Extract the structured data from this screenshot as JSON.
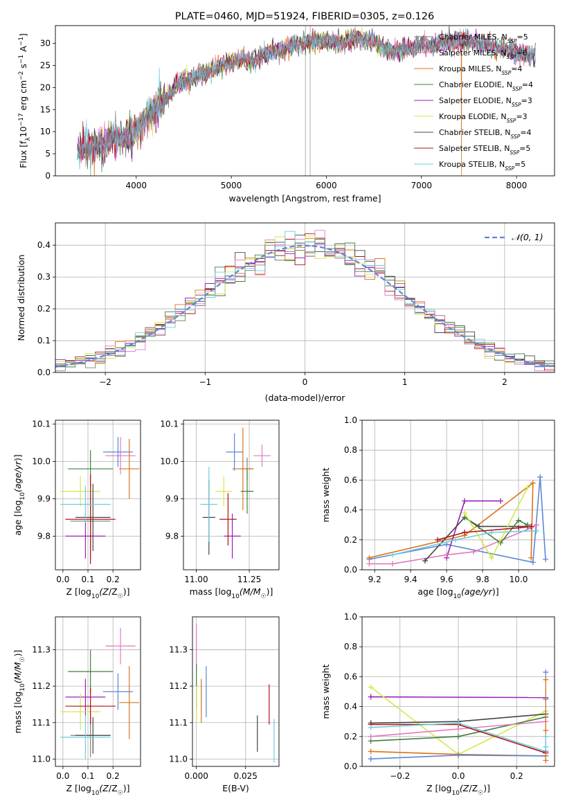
{
  "title": "PLATE=0460, MJD=51924, FIBERID=0305, z=0.126",
  "colors": [
    "#7f7f7f",
    "#e377c2",
    "#d9731a",
    "#3f7f3f",
    "#9a1fb5",
    "#d4e84a",
    "#444444",
    "#b01010",
    "#6ecbdf",
    "#5b86d6"
  ],
  "models": [
    "Chabrier MILES, N_SSP=5",
    "Salpeter MILES, N_SSP=6",
    "Kroupa MILES, N_SSP=4",
    "Chabrier ELODIE, N_SSP=4",
    "Salpeter ELODIE, N_SSP=3",
    "Kroupa ELODIE, N_SSP=3",
    "Chabrier STELIB, N_SSP=4",
    "Salpeter STELIB, N_SSP=5",
    "Kroupa STELIB, N_SSP=5"
  ],
  "chart_data": [
    {
      "id": "spectrum",
      "type": "line",
      "title": "PLATE=0460, MJD=51924, FIBERID=0305, z=0.126",
      "xlabel": "wavelength [Angstrom, rest frame]",
      "ylabel": "Flux [f_λ 10^-17 erg cm^-2 s^-1 A^-1]",
      "xlim": [
        3150,
        8400
      ],
      "ylim": [
        0,
        34
      ],
      "xticks": [
        4000,
        5000,
        6000,
        7000,
        8000
      ],
      "yticks": [
        0,
        5,
        10,
        15,
        20,
        25,
        30
      ],
      "grid": false,
      "legend": "top-right",
      "legend_entries": [
        {
          "name": "Chabrier MILES, N",
          "sub": "SSP",
          "tail": "=5"
        },
        {
          "name": "Salpeter MILES, N",
          "sub": "SSP",
          "tail": "=6"
        },
        {
          "name": "Kroupa MILES, N",
          "sub": "SSP",
          "tail": "=4"
        },
        {
          "name": "Chabrier ELODIE, N",
          "sub": "SSP",
          "tail": "=4"
        },
        {
          "name": "Salpeter ELODIE, N",
          "sub": "SSP",
          "tail": "=3"
        },
        {
          "name": "Kroupa ELODIE, N",
          "sub": "SSP",
          "tail": "=3"
        },
        {
          "name": "Chabrier STELIB, N",
          "sub": "SSP",
          "tail": "=4"
        },
        {
          "name": "Salpeter STELIB, N",
          "sub": "SSP",
          "tail": "=5"
        },
        {
          "name": "Kroupa STELIB, N",
          "sub": "SSP",
          "tail": "=5"
        }
      ],
      "continuum": [
        [
          3400,
          6
        ],
        [
          3500,
          6.5
        ],
        [
          3600,
          7
        ],
        [
          3700,
          8
        ],
        [
          3800,
          8.5
        ],
        [
          3900,
          9
        ],
        [
          4000,
          10
        ],
        [
          4100,
          13
        ],
        [
          4200,
          15
        ],
        [
          4300,
          17
        ],
        [
          4400,
          20
        ],
        [
          4500,
          21.5
        ],
        [
          4600,
          22.5
        ],
        [
          4700,
          23
        ],
        [
          4800,
          24
        ],
        [
          4900,
          25
        ],
        [
          5000,
          25.5
        ],
        [
          5100,
          26.5
        ],
        [
          5200,
          26
        ],
        [
          5300,
          27
        ],
        [
          5400,
          28
        ],
        [
          5500,
          28.5
        ],
        [
          5600,
          29
        ],
        [
          5700,
          30
        ],
        [
          5800,
          30
        ],
        [
          5900,
          30.5
        ],
        [
          6000,
          30.5
        ],
        [
          6100,
          30
        ],
        [
          6200,
          30.5
        ],
        [
          6300,
          31
        ],
        [
          6400,
          31
        ],
        [
          6500,
          30.5
        ],
        [
          6600,
          29
        ],
        [
          6700,
          28
        ],
        [
          6800,
          28.5
        ],
        [
          6900,
          29
        ],
        [
          7000,
          29.5
        ],
        [
          7100,
          29.5
        ],
        [
          7200,
          30
        ],
        [
          7300,
          30
        ],
        [
          7400,
          30.5
        ],
        [
          7500,
          30.5
        ],
        [
          7600,
          30
        ],
        [
          7700,
          29.5
        ],
        [
          7800,
          29
        ],
        [
          7900,
          28.5
        ],
        [
          8000,
          28
        ],
        [
          8100,
          27.5
        ],
        [
          8200,
          27
        ]
      ],
      "vertical_lines": [
        5780,
        5830
      ],
      "drops": [
        {
          "series": 2,
          "x": [
            3520,
            3560,
            7420
          ]
        },
        {
          "series": 5,
          "x": [
            3920,
            6790
          ]
        },
        {
          "series": 8,
          "x": [
            3520
          ]
        }
      ]
    },
    {
      "id": "residuals",
      "type": "histogram",
      "xlabel": "(data-model)/error",
      "ylabel": "Normed distribution",
      "xlim": [
        -2.5,
        2.5
      ],
      "ylim": [
        0,
        0.47
      ],
      "xticks": [
        -2,
        -1,
        0,
        1,
        2
      ],
      "yticks": [
        0.0,
        0.1,
        0.2,
        0.3,
        0.4
      ],
      "grid": true,
      "legend": "top-right",
      "legend_label": "𝒩(0, 1)",
      "reference_curve": {
        "name": "N(0,1)",
        "mean": 0,
        "sigma": 1,
        "color": "#5b86d6"
      },
      "bin_width": 0.1
    },
    {
      "id": "age_vs_Z",
      "type": "errorbar",
      "xlabel": "Z [log10(Z/Z☉)]",
      "ylabel": "age [log10(age/yr)]",
      "xlim": [
        -0.03,
        0.31
      ],
      "ylim": [
        9.71,
        10.11
      ],
      "xticks": [
        0.0,
        0.1,
        0.2
      ],
      "yticks": [
        9.8,
        9.9,
        10.0,
        10.1
      ],
      "grid": true,
      "points": [
        {
          "series": 0,
          "x": 0.11,
          "xerr": 0.08,
          "y": 9.84,
          "yerr": 0.1
        },
        {
          "series": 1,
          "x": 0.23,
          "xerr": 0.06,
          "y": 10.015,
          "yerr": 0.05
        },
        {
          "series": 2,
          "x": 0.265,
          "xerr": 0.04,
          "y": 9.98,
          "yerr": 0.08
        },
        {
          "series": 3,
          "x": 0.11,
          "xerr": 0.09,
          "y": 9.98,
          "yerr": 0.05
        },
        {
          "series": 4,
          "x": 0.09,
          "xerr": 0.08,
          "y": 9.8,
          "yerr": 0.06
        },
        {
          "series": 5,
          "x": 0.07,
          "xerr": 0.08,
          "y": 9.92,
          "yerr": 0.04
        },
        {
          "series": 6,
          "x": 0.12,
          "xerr": 0.07,
          "y": 9.85,
          "yerr": 0.09
        },
        {
          "series": 7,
          "x": 0.11,
          "xerr": 0.1,
          "y": 9.845,
          "yerr": 0.12
        },
        {
          "series": 8,
          "x": 0.09,
          "xerr": 0.1,
          "y": 9.885,
          "yerr": 0.05
        },
        {
          "series": 9,
          "x": 0.22,
          "xerr": 0.06,
          "y": 10.025,
          "yerr": 0.04
        }
      ]
    },
    {
      "id": "age_vs_mass",
      "type": "errorbar",
      "xlabel": "mass [log10(M/M☉)]",
      "ylabel": "",
      "xlim": [
        10.94,
        11.39
      ],
      "ylim": [
        9.71,
        10.11
      ],
      "xticks": [
        11.0,
        11.25
      ],
      "yticks": [
        9.8,
        9.9,
        10.0,
        10.1
      ],
      "grid": true,
      "points": [
        {
          "series": 0,
          "x": 11.24,
          "xerr": 0.03,
          "y": 9.98,
          "yerr": 0.03
        },
        {
          "series": 1,
          "x": 11.31,
          "xerr": 0.04,
          "y": 10.015,
          "yerr": 0.03
        },
        {
          "series": 2,
          "x": 11.22,
          "xerr": 0.05,
          "y": 9.98,
          "yerr": 0.11
        },
        {
          "series": 3,
          "x": 11.24,
          "xerr": 0.03,
          "y": 9.92,
          "yerr": 0.06
        },
        {
          "series": 4,
          "x": 11.17,
          "xerr": 0.04,
          "y": 9.8,
          "yerr": 0.06
        },
        {
          "series": 5,
          "x": 11.13,
          "xerr": 0.04,
          "y": 9.92,
          "yerr": 0.04
        },
        {
          "series": 6,
          "x": 11.06,
          "xerr": 0.03,
          "y": 9.85,
          "yerr": 0.1
        },
        {
          "series": 7,
          "x": 11.15,
          "xerr": 0.04,
          "y": 9.845,
          "yerr": 0.07
        },
        {
          "series": 8,
          "x": 11.06,
          "xerr": 0.04,
          "y": 9.885,
          "yerr": 0.1
        },
        {
          "series": 9,
          "x": 11.18,
          "xerr": 0.04,
          "y": 10.025,
          "yerr": 0.05
        }
      ]
    },
    {
      "id": "weight_vs_age",
      "type": "line",
      "xlabel": "age [log10(age/yr)]",
      "ylabel": "mass weight",
      "xlim": [
        9.13,
        10.2
      ],
      "ylim": [
        0,
        1
      ],
      "xticks": [
        9.2,
        9.4,
        9.6,
        9.8,
        10.0
      ],
      "yticks": [
        0.0,
        0.2,
        0.4,
        0.6,
        0.8,
        1.0
      ],
      "grid": true,
      "series": [
        {
          "series": 9,
          "x": [
            9.17,
            9.6,
            10.08,
            10.12,
            10.15
          ],
          "y": [
            0.07,
            0.17,
            0.05,
            0.62,
            0.07
          ]
        },
        {
          "series": 2,
          "x": [
            9.17,
            9.7,
            10.08,
            10.07
          ],
          "y": [
            0.08,
            0.23,
            0.58,
            0.08
          ]
        },
        {
          "series": 4,
          "x": [
            9.6,
            9.7,
            9.9
          ],
          "y": [
            0.08,
            0.46,
            0.46
          ]
        },
        {
          "series": 1,
          "x": [
            9.17,
            9.3,
            9.6,
            9.75,
            10.07,
            10.1
          ],
          "y": [
            0.04,
            0.04,
            0.1,
            0.12,
            0.28,
            0.3
          ]
        },
        {
          "series": 6,
          "x": [
            9.48,
            9.7,
            9.78,
            10.05
          ],
          "y": [
            0.06,
            0.35,
            0.29,
            0.29
          ]
        },
        {
          "series": 3,
          "x": [
            9.7,
            9.9,
            10.0,
            10.05
          ],
          "y": [
            0.35,
            0.18,
            0.33,
            0.3
          ]
        },
        {
          "series": 8,
          "x": [
            9.3,
            9.65,
            9.85,
            10.1
          ],
          "y": [
            0.1,
            0.2,
            0.25,
            0.26
          ]
        },
        {
          "series": 5,
          "x": [
            9.7,
            9.85,
            10.05
          ],
          "y": [
            0.38,
            0.08,
            0.55
          ]
        },
        {
          "series": 7,
          "x": [
            9.55,
            9.7,
            10.0,
            10.07
          ],
          "y": [
            0.2,
            0.25,
            0.28,
            0.29
          ]
        }
      ]
    },
    {
      "id": "mass_vs_Z",
      "type": "errorbar",
      "xlabel": "Z [log10(Z/Z☉)]",
      "ylabel": "mass [log10(M/M☉)]",
      "xlim": [
        -0.03,
        0.31
      ],
      "ylim": [
        10.98,
        11.39
      ],
      "xticks": [
        0.0,
        0.1,
        0.2
      ],
      "yticks": [
        11.0,
        11.1,
        11.2,
        11.3
      ],
      "grid": true,
      "points": [
        {
          "series": 0,
          "x": 0.11,
          "xerr": 0.08,
          "y": 11.065,
          "yerr": 0.06
        },
        {
          "series": 1,
          "x": 0.23,
          "xerr": 0.06,
          "y": 11.31,
          "yerr": 0.05
        },
        {
          "series": 2,
          "x": 0.265,
          "xerr": 0.04,
          "y": 11.155,
          "yerr": 0.1
        },
        {
          "series": 3,
          "x": 0.11,
          "xerr": 0.09,
          "y": 11.24,
          "yerr": 0.06
        },
        {
          "series": 4,
          "x": 0.09,
          "xerr": 0.08,
          "y": 11.17,
          "yerr": 0.05
        },
        {
          "series": 5,
          "x": 0.07,
          "xerr": 0.08,
          "y": 11.13,
          "yerr": 0.05
        },
        {
          "series": 6,
          "x": 0.12,
          "xerr": 0.07,
          "y": 11.065,
          "yerr": 0.05
        },
        {
          "series": 7,
          "x": 0.11,
          "xerr": 0.1,
          "y": 11.145,
          "yerr": 0.05
        },
        {
          "series": 8,
          "x": 0.09,
          "xerr": 0.1,
          "y": 11.06,
          "yerr": 0.06
        },
        {
          "series": 9,
          "x": 0.22,
          "xerr": 0.06,
          "y": 11.185,
          "yerr": 0.05
        }
      ]
    },
    {
      "id": "mass_vs_EBV",
      "type": "errorbar",
      "xlabel": "E(B-V)",
      "ylabel": "",
      "xlim": [
        -0.002,
        0.042
      ],
      "ylim": [
        10.98,
        11.39
      ],
      "xticks": [
        0.0,
        0.025
      ],
      "yticks": [
        11.0,
        11.1,
        11.2,
        11.3
      ],
      "grid": true,
      "points": [
        {
          "series": 1,
          "x": 0.0,
          "xerr": 0,
          "y": 11.31,
          "yerr": 0.06
        },
        {
          "series": 3,
          "x": 0.0,
          "xerr": 0,
          "y": 11.2,
          "yerr": 0.06
        },
        {
          "series": 5,
          "x": 0.0,
          "xerr": 0,
          "y": 11.15,
          "yerr": 0.05
        },
        {
          "series": 2,
          "x": 0.0025,
          "xerr": 0,
          "y": 11.16,
          "yerr": 0.06
        },
        {
          "series": 9,
          "x": 0.005,
          "xerr": 0,
          "y": 11.185,
          "yerr": 0.07
        },
        {
          "series": 6,
          "x": 0.031,
          "xerr": 0,
          "y": 11.07,
          "yerr": 0.05
        },
        {
          "series": 7,
          "x": 0.037,
          "xerr": 0,
          "y": 11.15,
          "yerr": 0.055
        },
        {
          "series": 8,
          "x": 0.0395,
          "xerr": 0,
          "y": 11.05,
          "yerr": 0.06
        }
      ]
    },
    {
      "id": "weight_vs_Z",
      "type": "line",
      "xlabel": "Z [log10(Z/Z☉)]",
      "ylabel": "mass weight",
      "xlim": [
        -0.33,
        0.33
      ],
      "ylim": [
        0,
        1
      ],
      "xticks": [
        -0.2,
        0.0,
        0.2
      ],
      "yticks": [
        0.0,
        0.2,
        0.4,
        0.6,
        0.8,
        1.0
      ],
      "grid": true,
      "series": [
        {
          "series": 4,
          "x": [
            -0.3,
            0.3
          ],
          "y": [
            0.465,
            0.46
          ]
        },
        {
          "series": 5,
          "x": [
            -0.3,
            0.0,
            0.3
          ],
          "y": [
            0.53,
            0.08,
            0.37
          ]
        },
        {
          "series": 6,
          "x": [
            -0.3,
            0.0,
            0.3
          ],
          "y": [
            0.29,
            0.3,
            0.35
          ]
        },
        {
          "series": 3,
          "x": [
            -0.3,
            0.0,
            0.3
          ],
          "y": [
            0.17,
            0.2,
            0.33
          ]
        },
        {
          "series": 1,
          "x": [
            -0.3,
            0.0,
            0.3
          ],
          "y": [
            0.2,
            0.25,
            0.3
          ]
        },
        {
          "series": 7,
          "x": [
            -0.3,
            0.0,
            0.3
          ],
          "y": [
            0.28,
            0.28,
            0.09
          ]
        },
        {
          "series": 8,
          "x": [
            -0.3,
            0.0,
            0.3
          ],
          "y": [
            0.26,
            0.29,
            0.1
          ]
        },
        {
          "series": 2,
          "x": [
            -0.3,
            0.0,
            0.3
          ],
          "y": [
            0.1,
            0.08,
            0.07
          ]
        },
        {
          "series": 9,
          "x": [
            -0.3,
            0.0,
            0.3
          ],
          "y": [
            0.05,
            0.075,
            0.07
          ]
        }
      ],
      "end_markers": [
        {
          "series": 9,
          "x": 0.3,
          "y": [
            0.63,
            0.45,
            0.1
          ]
        },
        {
          "series": 2,
          "x": 0.3,
          "y": [
            0.58,
            0.24,
            0.04
          ]
        },
        {
          "series": 8,
          "x": 0.3,
          "y": [
            0.2,
            0.13
          ]
        }
      ]
    }
  ]
}
